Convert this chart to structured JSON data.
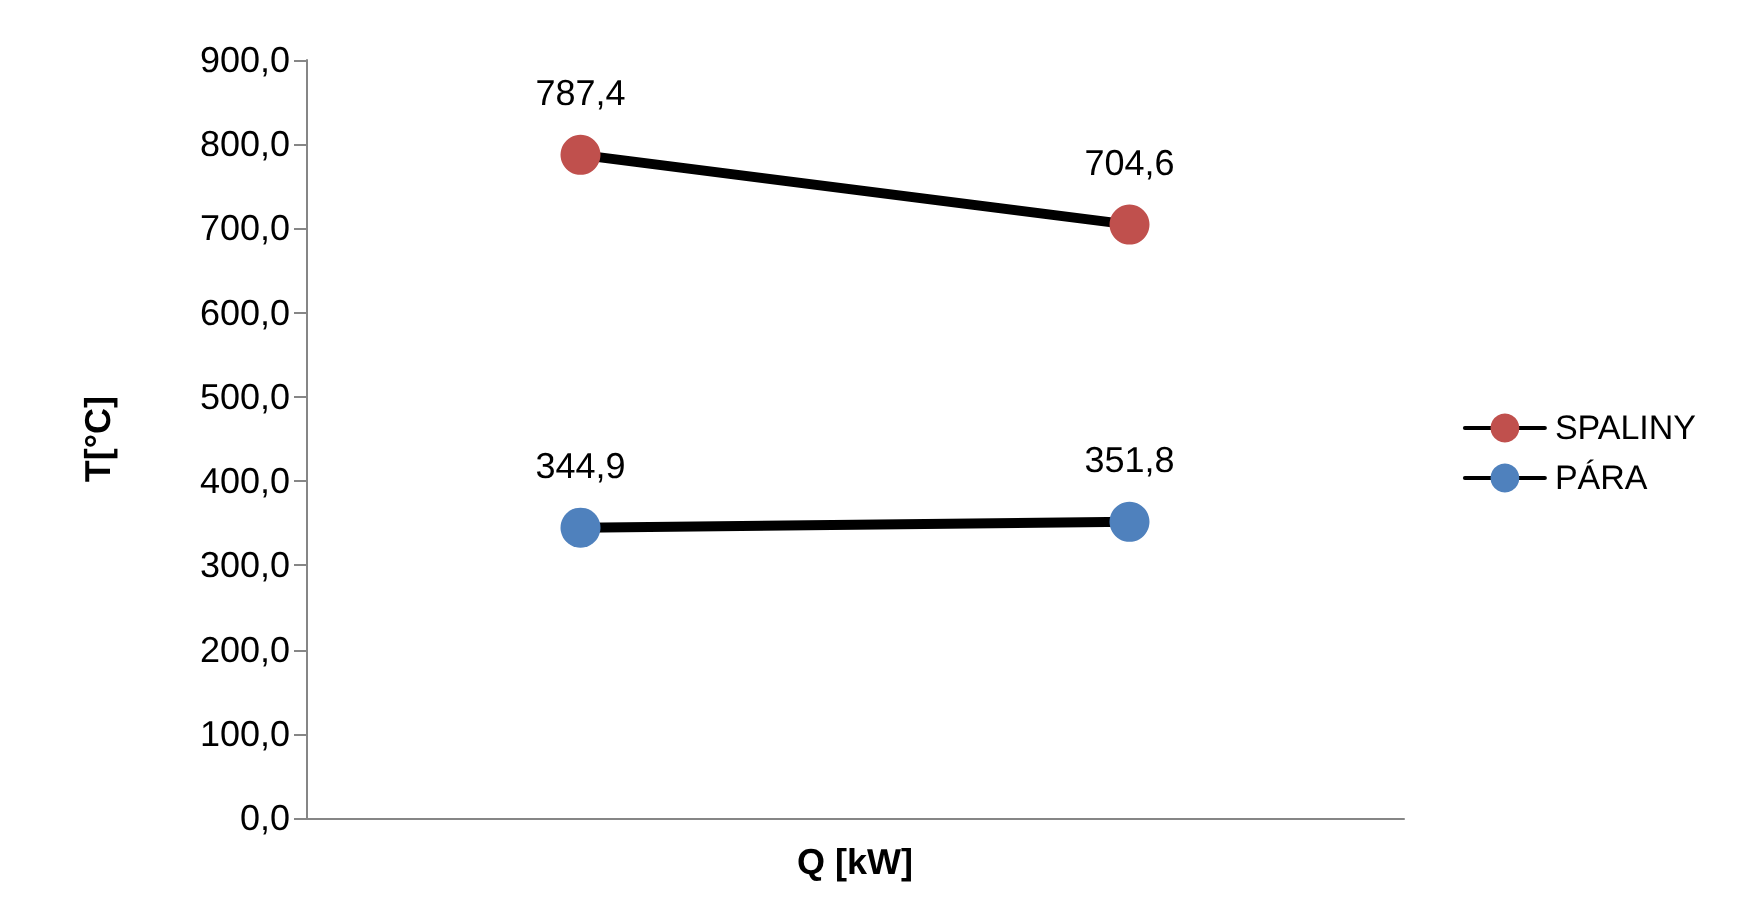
{
  "chart_data": {
    "type": "line",
    "xlabel": "Q [kW]",
    "ylabel": "T[°C]",
    "categories": [
      null,
      null
    ],
    "series": [
      {
        "name": "SPALINY",
        "color": "#c0504d",
        "values": [
          787.4,
          704.6
        ],
        "value_labels": [
          "787,4",
          "704,6"
        ]
      },
      {
        "name": "PÁRA",
        "color": "#4f81bd",
        "values": [
          344.9,
          351.8
        ],
        "value_labels": [
          "344,9",
          "351,8"
        ]
      }
    ],
    "ylim": [
      0,
      900
    ],
    "yticks": [
      {
        "value": 0,
        "label": "0,0"
      },
      {
        "value": 100,
        "label": "100,0"
      },
      {
        "value": 200,
        "label": "200,0"
      },
      {
        "value": 300,
        "label": "300,0"
      },
      {
        "value": 400,
        "label": "400,0"
      },
      {
        "value": 500,
        "label": "500,0"
      },
      {
        "value": 600,
        "label": "600,0"
      },
      {
        "value": 700,
        "label": "700,0"
      },
      {
        "value": 800,
        "label": "800,0"
      },
      {
        "value": 900,
        "label": "900,0"
      }
    ],
    "grid": false,
    "legend": "right",
    "marker": "circle",
    "line_style": "solid"
  }
}
